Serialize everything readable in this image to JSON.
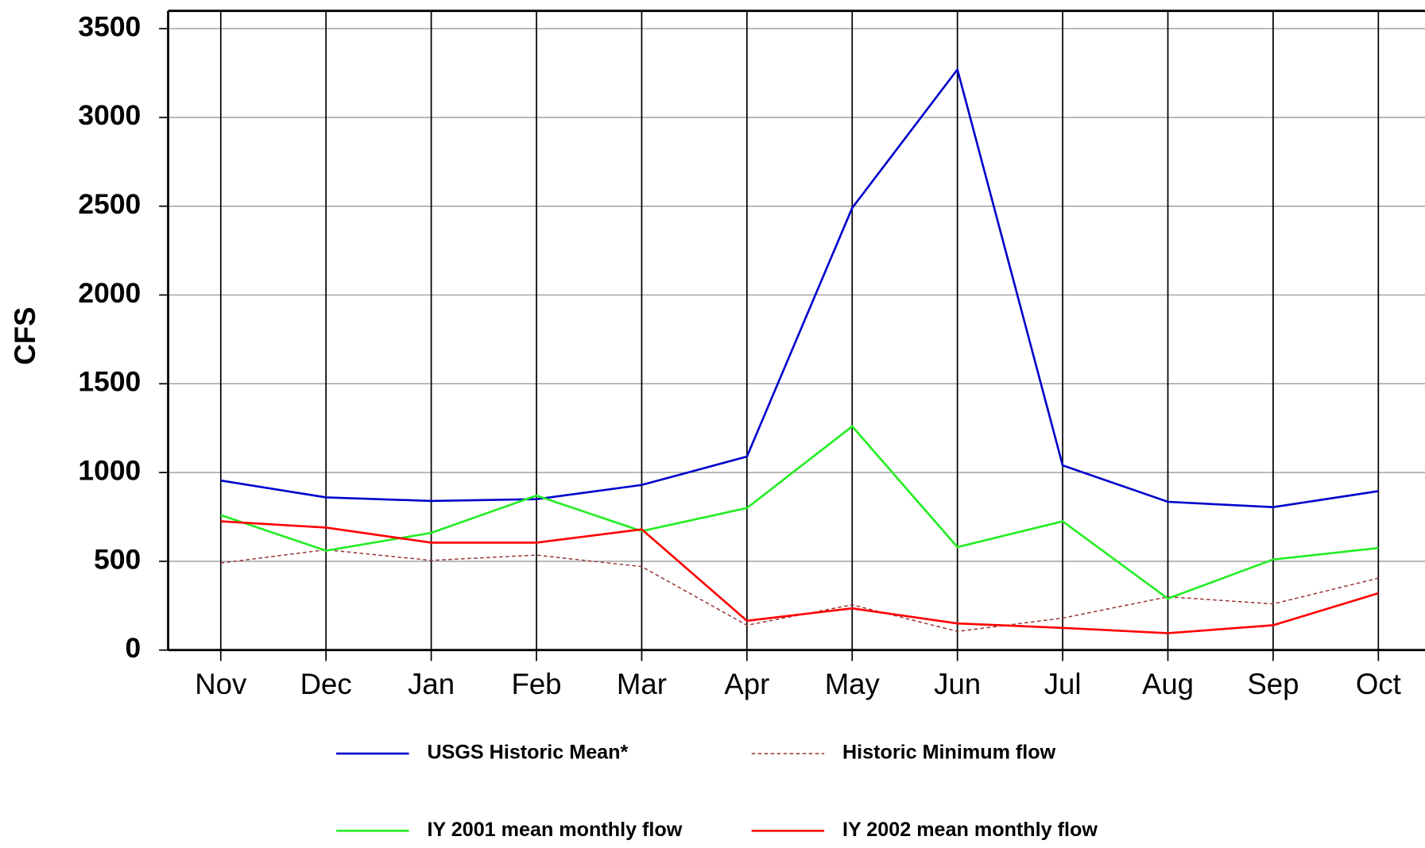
{
  "chart_data": {
    "type": "line",
    "y_label": "CFS",
    "categories": [
      "Nov",
      "Dec",
      "Jan",
      "Feb",
      "Mar",
      "Apr",
      "May",
      "Jun",
      "Jul",
      "Aug",
      "Sep",
      "Oct"
    ],
    "series": [
      {
        "name": "USGS Historic Mean*",
        "color": "#0000cc",
        "style": "solid",
        "values": [
          955,
          860,
          840,
          850,
          930,
          1090,
          2490,
          3270,
          1040,
          835,
          805,
          895
        ]
      },
      {
        "name": "Historic Minimum flow",
        "color": "#993333",
        "style": "dashed",
        "values": [
          490,
          565,
          505,
          535,
          470,
          140,
          255,
          105,
          180,
          300,
          260,
          405
        ]
      },
      {
        "name": "IY 2001 mean monthly flow",
        "color": "#22ee22",
        "style": "solid",
        "values": [
          760,
          560,
          660,
          870,
          670,
          800,
          1260,
          580,
          725,
          290,
          510,
          575
        ]
      },
      {
        "name": "IY 2002 mean monthly flow",
        "color": "#ff0000",
        "style": "solid",
        "values": [
          725,
          690,
          605,
          605,
          680,
          165,
          235,
          150,
          125,
          95,
          140,
          320
        ]
      }
    ],
    "ylim": [
      0,
      3600
    ],
    "yticks": [
      0,
      500,
      1000,
      1500,
      2000,
      2500,
      3000,
      3500
    ],
    "grid": true
  }
}
